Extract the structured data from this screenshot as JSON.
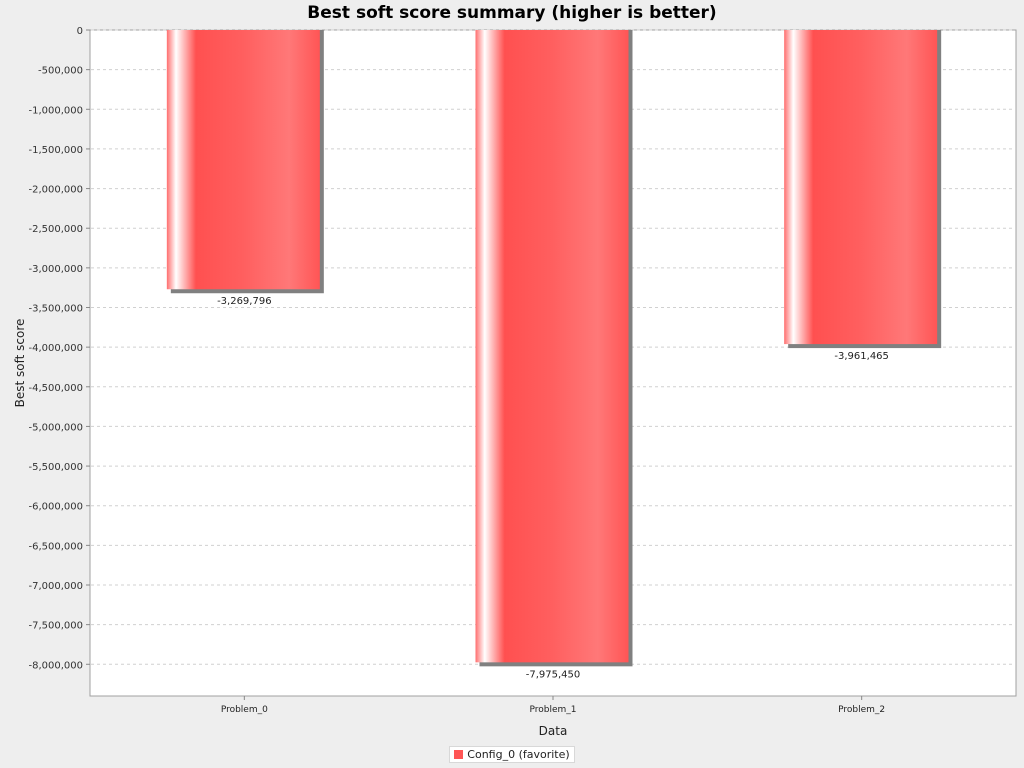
{
  "chart_data": {
    "type": "bar",
    "title": "Best soft score summary (higher is better)",
    "xlabel": "Data",
    "ylabel": "Best soft score",
    "categories": [
      "Problem_0",
      "Problem_1",
      "Problem_2"
    ],
    "series": [
      {
        "name": "Config_0 (favorite)",
        "values": [
          -3269796,
          -7975450,
          -3961465
        ],
        "value_labels": [
          "-3,269,796",
          "-7,975,450",
          "-3,961,465"
        ],
        "color": "#ff5555"
      }
    ],
    "ylim": [
      -8400000,
      0
    ],
    "yticks": [
      0,
      -500000,
      -1000000,
      -1500000,
      -2000000,
      -2500000,
      -3000000,
      -3500000,
      -4000000,
      -4500000,
      -5000000,
      -5500000,
      -6000000,
      -6500000,
      -7000000,
      -7500000,
      -8000000
    ],
    "ytick_labels": [
      "0",
      "-500,000",
      "-1,000,000",
      "-1,500,000",
      "-2,000,000",
      "-2,500,000",
      "-3,000,000",
      "-3,500,000",
      "-4,000,000",
      "-4,500,000",
      "-5,000,000",
      "-5,500,000",
      "-6,000,000",
      "-6,500,000",
      "-7,000,000",
      "-7,500,000",
      "-8,000,000"
    ],
    "grid": true,
    "legend": "bottom-center"
  }
}
